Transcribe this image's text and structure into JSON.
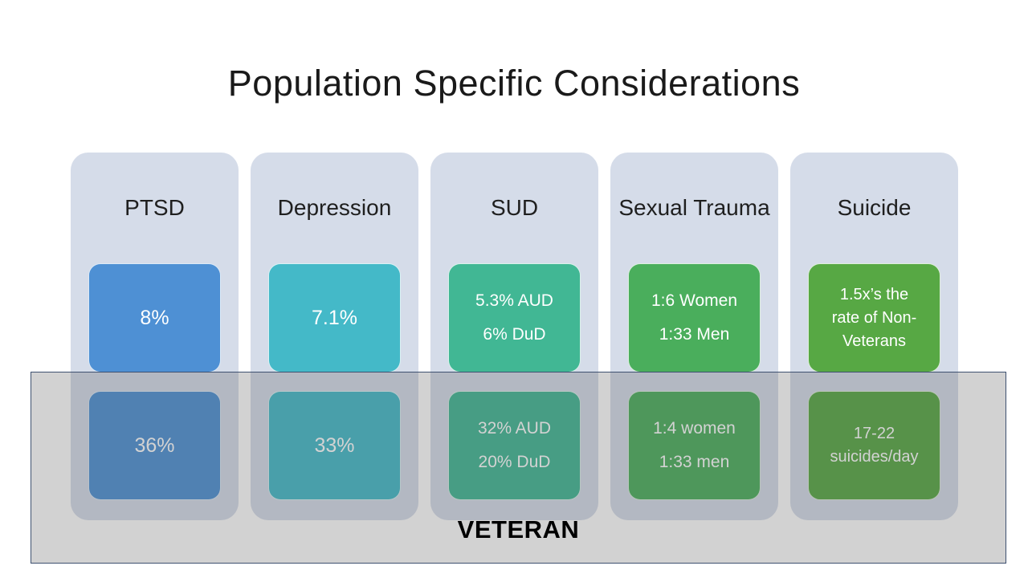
{
  "slide": {
    "title": "Population Specific Considerations",
    "veteran_label": "VETERAN"
  },
  "colors": {
    "panel_background": "#D5DCE9",
    "overlay_fill": "rgba(90,90,90,0.27)",
    "overlay_border": "#3E5170",
    "title_text": "#1a1a1a",
    "stat_text": "#ffffff"
  },
  "columns": [
    {
      "header": "PTSD",
      "color": "#4E90D4",
      "general_value": "8%",
      "veteran_value": "36%"
    },
    {
      "header": "Depression",
      "color": "#44B9C8",
      "general_value": "7.1%",
      "veteran_value": "33%"
    },
    {
      "header": "SUD",
      "color": "#41B794",
      "general_value": "5.3% AUD\n6% DuD",
      "veteran_value": "32% AUD\n20% DuD"
    },
    {
      "header": "Sexual Trauma",
      "color": "#4AAE5C",
      "general_value": "1:6 Women\n1:33 Men",
      "veteran_value": "1:4 women\n1:33 men"
    },
    {
      "header": "Suicide",
      "color": "#57A844",
      "general_value": "1.5x’s the\nrate of Non-\nVeterans",
      "veteran_value": "17-22\nsuicides/day"
    }
  ]
}
